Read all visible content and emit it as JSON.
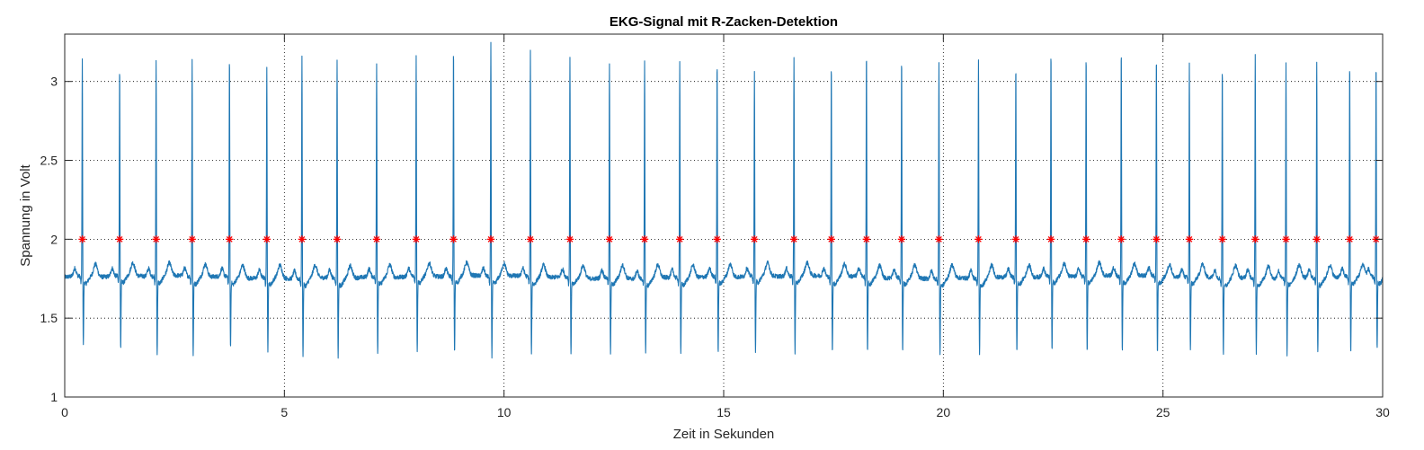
{
  "chart_data": {
    "type": "line",
    "title": "EKG-Signal mit R-Zacken-Detektion",
    "xlabel": "Zeit in Sekunden",
    "ylabel": "Spannung in Volt",
    "xlim": [
      0,
      30
    ],
    "ylim": [
      1,
      3.3
    ],
    "xticks": [
      0,
      5,
      10,
      15,
      20,
      25,
      30
    ],
    "xtick_labels": [
      "0",
      "5",
      "10",
      "15",
      "20",
      "25",
      "30"
    ],
    "yticks": [
      1,
      1.5,
      2,
      2.5,
      3
    ],
    "ytick_labels": [
      "1",
      "1.5",
      "2",
      "2.5",
      "3"
    ],
    "grid": true,
    "grid_style": "dotted",
    "baseline_v": 1.76,
    "detection_level_v": 2.0,
    "colors": {
      "signal": "#1f77b4",
      "markers": "#ff0000",
      "axes": "#262626",
      "grid": "#000000"
    },
    "series": [
      {
        "kind": "ekg-signal",
        "r_peak_times_s": [
          0.4,
          1.25,
          2.08,
          2.9,
          3.75,
          4.6,
          5.4,
          6.2,
          7.1,
          8.0,
          8.85,
          9.7,
          10.6,
          11.5,
          12.4,
          13.2,
          14.0,
          14.85,
          15.7,
          16.6,
          17.45,
          18.25,
          19.05,
          19.9,
          20.8,
          21.65,
          22.45,
          23.25,
          24.05,
          24.85,
          25.6,
          26.35,
          27.1,
          27.8,
          28.5,
          29.25,
          29.85
        ],
        "r_peak_heights_v": [
          3.15,
          3.1,
          3.14,
          3.15,
          3.18,
          3.12,
          3.19,
          3.17,
          3.13,
          3.17,
          3.22,
          3.26,
          3.2,
          3.18,
          3.14,
          3.17,
          3.16,
          3.14,
          3.07,
          3.15,
          3.13,
          3.2,
          3.18,
          3.15,
          3.16,
          3.13,
          3.2,
          3.18,
          3.22,
          3.17,
          3.13,
          3.12,
          3.18,
          3.14,
          3.15,
          3.13,
          3.13
        ],
        "s_trough_heights_v": [
          1.35,
          1.31,
          1.29,
          1.28,
          1.33,
          1.32,
          1.3,
          1.29,
          1.3,
          1.31,
          1.3,
          1.28,
          1.3,
          1.3,
          1.31,
          1.31,
          1.3,
          1.3,
          1.3,
          1.3,
          1.31,
          1.3,
          1.31,
          1.3,
          1.31,
          1.3,
          1.31,
          1.3,
          1.31,
          1.3,
          1.31,
          1.3,
          1.31,
          1.3,
          1.31,
          1.3,
          1.32
        ]
      },
      {
        "kind": "r-peak-detections",
        "marker": "*",
        "y_value": 2.0,
        "x_values": [
          0.4,
          1.25,
          2.08,
          2.9,
          3.75,
          4.6,
          5.4,
          6.2,
          7.1,
          8.0,
          8.85,
          9.7,
          10.6,
          11.5,
          12.4,
          13.2,
          14.0,
          14.85,
          15.7,
          16.6,
          17.45,
          18.25,
          19.05,
          19.9,
          20.8,
          21.65,
          22.45,
          23.25,
          24.05,
          24.85,
          25.6,
          26.35,
          27.1,
          27.8,
          28.5,
          29.25,
          29.85
        ]
      }
    ]
  }
}
